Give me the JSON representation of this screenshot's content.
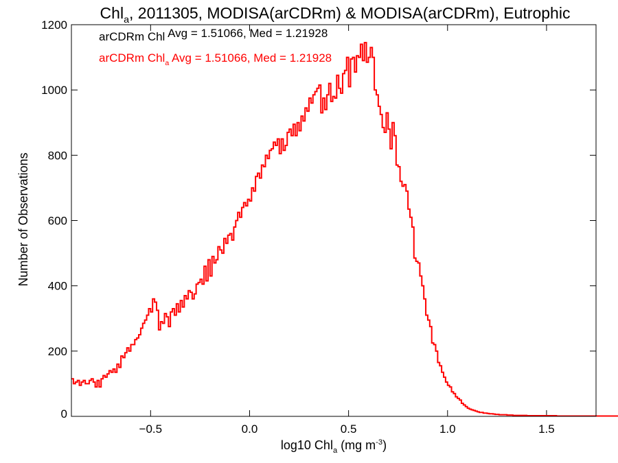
{
  "chart_data": {
    "type": "histogram",
    "title": {
      "main": "Chl",
      "sub": "a",
      "rest": ", 2011305, MODISA(arCDRm) & MODISA(arCDRm), Eutrophic"
    },
    "xlabel": {
      "main": "log10 Chl",
      "sub": "a",
      "rest": " (mg m",
      "sup": "-3",
      "end": ")"
    },
    "ylabel": "Number of Observations",
    "xlim": [
      -0.9,
      1.75
    ],
    "ylim": [
      0,
      1200
    ],
    "xticks": [
      {
        "value": -0.5,
        "label": "−0.5"
      },
      {
        "value": 0.0,
        "label": "0.0"
      },
      {
        "value": 0.5,
        "label": "0.5"
      },
      {
        "value": 1.0,
        "label": "1.0"
      },
      {
        "value": 1.5,
        "label": "1.5"
      }
    ],
    "yticks": [
      {
        "value": 0,
        "label": "0"
      },
      {
        "value": 200,
        "label": "200"
      },
      {
        "value": 400,
        "label": "400"
      },
      {
        "value": 600,
        "label": "600"
      },
      {
        "value": 800,
        "label": "800"
      },
      {
        "value": 1000,
        "label": "1000"
      },
      {
        "value": 1200,
        "label": "1200"
      }
    ],
    "annotations": [
      {
        "main": "arCDRm Chl",
        "sub": "",
        "rest": " Avg = 1.51066, Med = 1.21928",
        "color": "#000000"
      },
      {
        "main": "arCDRm Chl",
        "sub": "a",
        "rest": " Avg = 1.51066, Med = 1.21928",
        "color": "#ff0000"
      }
    ],
    "bin_width": 0.01,
    "x_start": -0.9,
    "series": [
      {
        "color": "#ff0000",
        "values": [
          115,
          100,
          105,
          110,
          95,
          105,
          110,
          100,
          100,
          110,
          115,
          105,
          90,
          110,
          90,
          115,
          125,
          120,
          130,
          140,
          135,
          145,
          135,
          160,
          150,
          185,
          180,
          195,
          210,
          200,
          220,
          220,
          235,
          240,
          250,
          270,
          285,
          295,
          310,
          330,
          320,
          360,
          350,
          325,
          265,
          290,
          285,
          315,
          305,
          275,
          320,
          330,
          310,
          345,
          320,
          355,
          335,
          370,
          360,
          385,
          380,
          360,
          375,
          405,
          410,
          420,
          405,
          460,
          415,
          480,
          430,
          490,
          470,
          480,
          520,
          510,
          500,
          545,
          530,
          555,
          560,
          540,
          580,
          600,
          625,
          610,
          640,
          655,
          645,
          665,
          660,
          700,
          690,
          735,
          745,
          730,
          770,
          765,
          800,
          790,
          815,
          820,
          840,
          830,
          850,
          805,
          850,
          815,
          830,
          870,
          880,
          860,
          895,
          860,
          900,
          875,
          920,
          905,
          945,
          935,
          975,
          960,
          985,
          995,
          1005,
          1015,
          930,
          975,
          940,
          985,
          1020,
          965,
          980,
          975,
          1045,
          1005,
          990,
          1050,
          1060,
          1100,
          1010,
          1095,
          1100,
          1055,
          1105,
          1100,
          1140,
          1090,
          1145,
          1085,
          1100,
          1130,
          1100,
          1000,
          985,
          950,
          925,
          885,
          870,
          930,
          880,
          820,
          900,
          860,
          770,
          765,
          720,
          705,
          710,
          690,
          635,
          610,
          580,
          485,
          475,
          470,
          430,
          400,
          360,
          310,
          295,
          275,
          225,
          220,
          200,
          165,
          155,
          135,
          120,
          105,
          95,
          90,
          75,
          70,
          60,
          55,
          50,
          40,
          35,
          30,
          25,
          22,
          20,
          18,
          16,
          14,
          12,
          12,
          10,
          10,
          9,
          8,
          8,
          7,
          6,
          6,
          5,
          5,
          5,
          5,
          4,
          4,
          4,
          3,
          3,
          3,
          3,
          3,
          3,
          3,
          2,
          2,
          2,
          2,
          2,
          2,
          2,
          2,
          2,
          2,
          2,
          2,
          2,
          2,
          2,
          1,
          1,
          1,
          1,
          1,
          1,
          1,
          1,
          1,
          1,
          1,
          1,
          1,
          1,
          1,
          1,
          1,
          1,
          1,
          1,
          1,
          1,
          1,
          1,
          1,
          1,
          1,
          1,
          1,
          1,
          1,
          1,
          1,
          1,
          1,
          1,
          1,
          1,
          1,
          1,
          1,
          1,
          1,
          1,
          1,
          1,
          1,
          1,
          1,
          1,
          1,
          1,
          1,
          1,
          1
        ]
      }
    ]
  }
}
